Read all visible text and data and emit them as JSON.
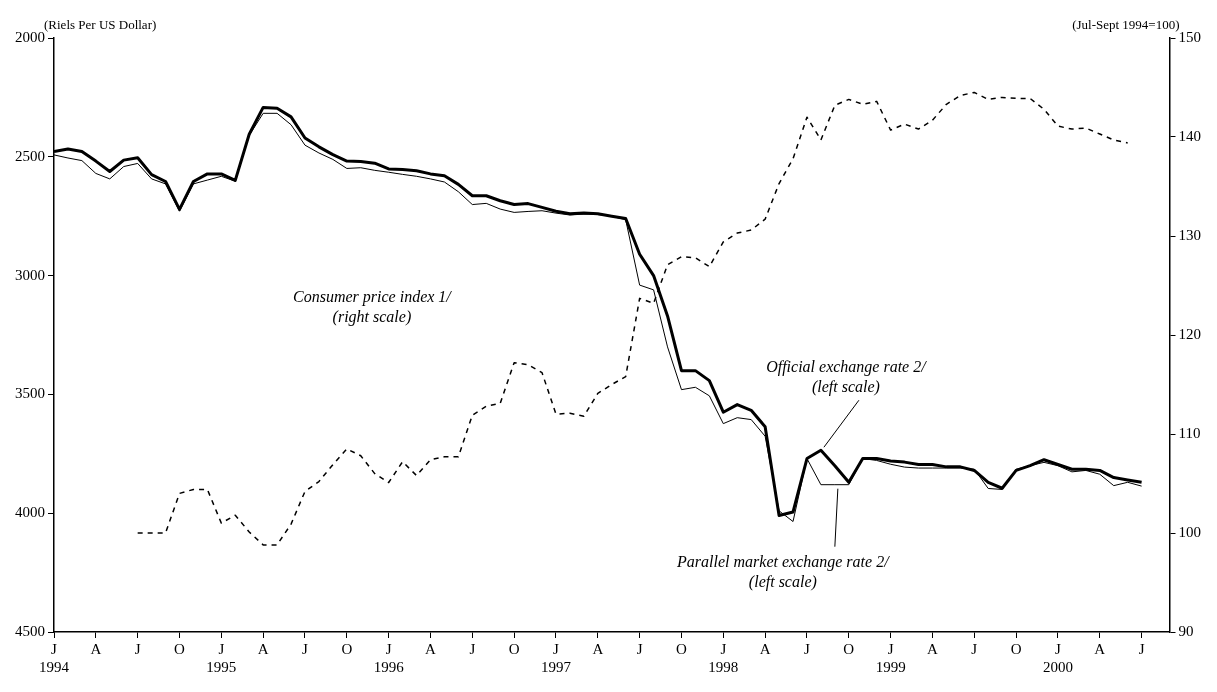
{
  "chart_data": {
    "type": "line",
    "ylabel": "(Riels Per US Dollar)",
    "y2label": "(Jul-Sept 1994=100)",
    "x": [
      "1994-01",
      "1994-02",
      "1994-03",
      "1994-04",
      "1994-05",
      "1994-06",
      "1994-07",
      "1994-08",
      "1994-09",
      "1994-10",
      "1994-11",
      "1994-12",
      "1995-01",
      "1995-02",
      "1995-03",
      "1995-04",
      "1995-05",
      "1995-06",
      "1995-07",
      "1995-08",
      "1995-09",
      "1995-10",
      "1995-11",
      "1995-12",
      "1996-01",
      "1996-02",
      "1996-03",
      "1996-04",
      "1996-05",
      "1996-06",
      "1996-07",
      "1996-08",
      "1996-09",
      "1996-10",
      "1996-11",
      "1996-12",
      "1997-01",
      "1997-02",
      "1997-03",
      "1997-04",
      "1997-05",
      "1997-06",
      "1997-07",
      "1997-08",
      "1997-09",
      "1997-10",
      "1997-11",
      "1997-12",
      "1998-01",
      "1998-02",
      "1998-03",
      "1998-04",
      "1998-05",
      "1998-06",
      "1998-07",
      "1998-08",
      "1998-09",
      "1998-10",
      "1998-11",
      "1998-12",
      "1999-01",
      "1999-02",
      "1999-03",
      "1999-04",
      "1999-05",
      "1999-06",
      "1999-07",
      "1999-08",
      "1999-09",
      "1999-10",
      "1999-11",
      "1999-12",
      "2000-01",
      "2000-02",
      "2000-03",
      "2000-04",
      "2000-05",
      "2000-06",
      "2000-07"
    ],
    "series": [
      {
        "color": "#000000",
        "values": [
          2478,
          2467,
          2478,
          2518,
          2562,
          2514,
          2504,
          2575,
          2604,
          2721,
          2604,
          2572,
          2572,
          2599,
          2405,
          2292,
          2296,
          2332,
          2421,
          2458,
          2491,
          2518,
          2520,
          2527,
          2551,
          2553,
          2559,
          2572,
          2580,
          2616,
          2664,
          2664,
          2685,
          2701,
          2697,
          2713,
          2729,
          2740,
          2737,
          2740,
          2750,
          2760,
          2910,
          3000,
          3170,
          3400,
          3400,
          3442,
          3575,
          3543,
          3567,
          3636,
          4010,
          3995,
          3770,
          3735,
          3800,
          3870,
          3770,
          3770,
          3780,
          3785,
          3795,
          3795,
          3805,
          3805,
          3820,
          3870,
          3895,
          3820,
          3800,
          3775,
          3795,
          3815,
          3815,
          3820,
          3850,
          3860,
          3870
        ]
      },
      {
        "color": "#000000",
        "values": [
          2492,
          2505,
          2516,
          2570,
          2593,
          2541,
          2528,
          2593,
          2614,
          2729,
          2614,
          2598,
          2582,
          2603,
          2410,
          2317,
          2317,
          2365,
          2451,
          2484,
          2511,
          2549,
          2546,
          2557,
          2565,
          2574,
          2582,
          2593,
          2606,
          2647,
          2701,
          2696,
          2720,
          2734,
          2730,
          2727,
          2737,
          2745,
          2741,
          2743,
          2750,
          2765,
          3040,
          3060,
          3300,
          3480,
          3470,
          3506,
          3623,
          3598,
          3606,
          3676,
          3990,
          4035,
          3770,
          3880,
          3880,
          3880,
          3770,
          3778,
          3794,
          3806,
          3810,
          3810,
          3810,
          3810,
          3815,
          3896,
          3900,
          3815,
          3800,
          3786,
          3800,
          3826,
          3820,
          3836,
          3884,
          3870,
          3886
        ]
      },
      {
        "color": "#000000",
        "axis": "y2",
        "line_style": "dashed",
        "values": [
          null,
          null,
          null,
          null,
          null,
          null,
          100,
          100,
          100,
          104.0,
          104.4,
          104.4,
          101.0,
          101.8,
          100.1,
          98.8,
          98.8,
          100.9,
          104.2,
          105.2,
          106.9,
          108.5,
          107.8,
          106.0,
          105.1,
          107.2,
          105.8,
          107.4,
          107.7,
          107.7,
          111.9,
          112.8,
          113.1,
          117.2,
          117.0,
          116.2,
          112.0,
          112.1,
          111.8,
          114.1,
          115.0,
          115.8,
          123.7,
          123.2,
          127.1,
          127.9,
          127.8,
          126.9,
          129.4,
          130.3,
          130.6,
          131.7,
          135.3,
          137.8,
          142.0,
          139.7,
          143.2,
          143.8,
          143.3,
          143.6,
          140.7,
          141.3,
          140.8,
          141.7,
          143.3,
          144.2,
          144.5,
          143.8,
          144.0,
          143.9,
          143.9,
          142.8,
          141.1,
          140.8,
          140.9,
          140.3,
          139.7,
          139.4,
          null
        ]
      }
    ],
    "xlim": [
      "1994-01",
      "2000-09"
    ],
    "xticks": [
      {
        "value": "1994-01",
        "label": "J\n1994"
      },
      {
        "value": "1994-04",
        "label": "A"
      },
      {
        "value": "1994-07",
        "label": "J"
      },
      {
        "value": "1994-10",
        "label": "O"
      },
      {
        "value": "1995-01",
        "label": "J\n1995"
      },
      {
        "value": "1995-04",
        "label": "A"
      },
      {
        "value": "1995-07",
        "label": "J"
      },
      {
        "value": "1995-10",
        "label": "O"
      },
      {
        "value": "1996-01",
        "label": "J\n1996"
      },
      {
        "value": "1996-04",
        "label": "A"
      },
      {
        "value": "1996-07",
        "label": "J"
      },
      {
        "value": "1996-10",
        "label": "O"
      },
      {
        "value": "1997-01",
        "label": "J\n1997"
      },
      {
        "value": "1997-04",
        "label": "A"
      },
      {
        "value": "1997-07",
        "label": "J"
      },
      {
        "value": "1997-10",
        "label": "O"
      },
      {
        "value": "1998-01",
        "label": "J\n1998"
      },
      {
        "value": "1998-04",
        "label": "A"
      },
      {
        "value": "1998-07",
        "label": "J"
      },
      {
        "value": "1998-10",
        "label": "O"
      },
      {
        "value": "1999-01",
        "label": "J\n1999"
      },
      {
        "value": "1999-04",
        "label": "A"
      },
      {
        "value": "1999-07",
        "label": "J"
      },
      {
        "value": "1999-10",
        "label": "O"
      },
      {
        "value": "2000-01",
        "label": "J\n2000"
      },
      {
        "value": "2000-04",
        "label": "A"
      },
      {
        "value": "2000-07",
        "label": "J"
      }
    ],
    "ylim": [
      4500,
      2000
    ],
    "yticks": [
      2000,
      2500,
      3000,
      3500,
      4000,
      4500
    ],
    "y2lim": [
      90,
      150
    ],
    "y2ticks": [
      90,
      100,
      110,
      120,
      130,
      140,
      150
    ],
    "grid": false,
    "legend": false,
    "marker": "none",
    "annotations": [
      "Consumer price index 1/\n(right scale)",
      {
        "text": "Official exchange rate 2/\n(left scale)",
        "x": "1998-08",
        "y": 3735
      },
      {
        "text": "Parallel market exchange rate 2/\n(left scale)",
        "x": "1998-09",
        "y": 3880
      }
    ]
  }
}
